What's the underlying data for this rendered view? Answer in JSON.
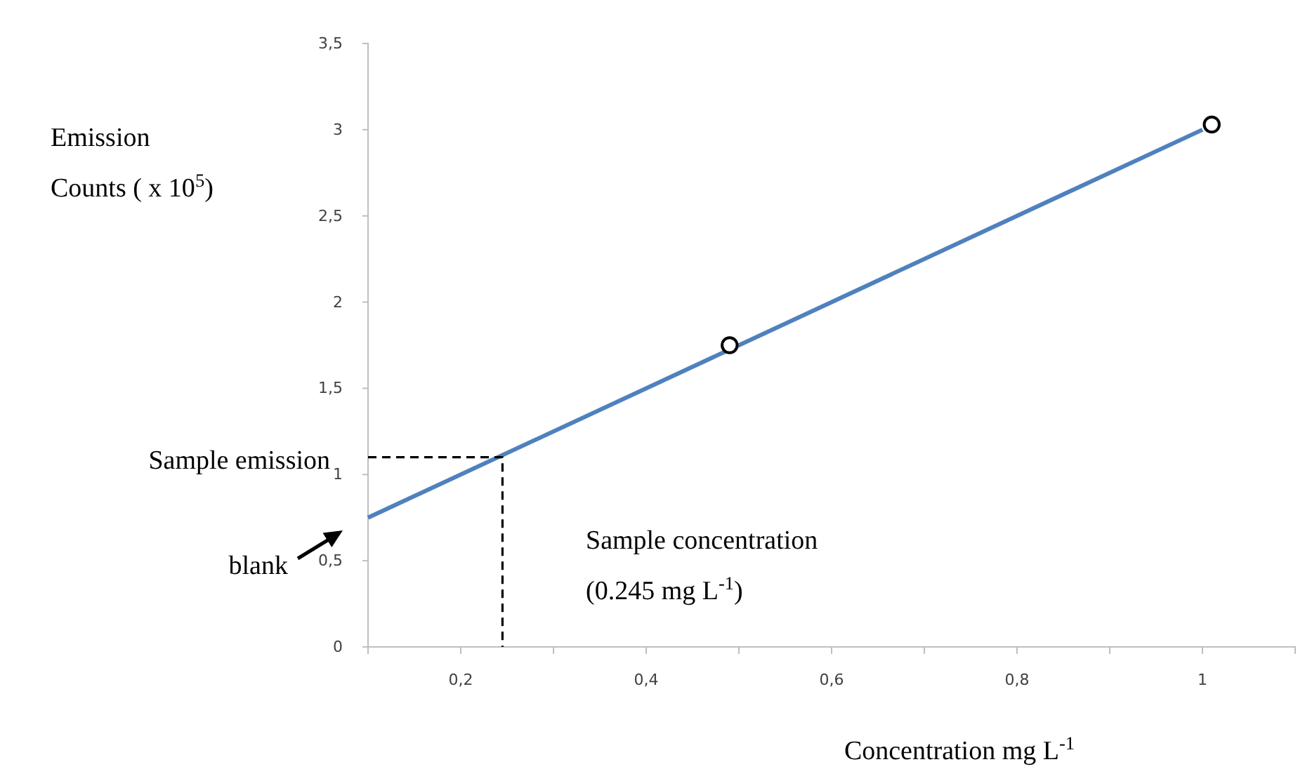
{
  "chart_data": {
    "type": "line",
    "ylabel": "Emission\nCounts  ( x 10$^{5}$)",
    "xlabel": "Concentration  mg L$^{-1}$",
    "xlim": [
      0.1,
      1.1
    ],
    "xticks": [
      {
        "value": 0.2,
        "label": "0,2"
      },
      {
        "value": 0.3,
        "label": null
      },
      {
        "value": 0.4,
        "label": "0,4"
      },
      {
        "value": 0.5,
        "label": null
      },
      {
        "value": 0.6,
        "label": "0,6"
      },
      {
        "value": 0.7,
        "label": null
      },
      {
        "value": 0.8,
        "label": "0,8"
      },
      {
        "value": 0.9,
        "label": null
      },
      {
        "value": 1,
        "label": "1"
      }
    ],
    "ylim": [
      0,
      3.5
    ],
    "yticks": [
      0,
      {
        "value": 0.5,
        "label": "0,5"
      },
      1,
      {
        "value": 1.5,
        "label": "1,5"
      },
      2,
      {
        "value": 2.5,
        "label": "2,5"
      },
      3,
      {
        "value": 3.5,
        "label": "3,5"
      }
    ],
    "grid": false,
    "series": [
      {
        "color": "#4f81bd",
        "x": [
          0.1,
          1.0
        ],
        "values": [
          0.75,
          3.0
        ],
        "marker": "none",
        "line_style": "solid"
      },
      {
        "type": "scatter",
        "color": "#000000",
        "x": [
          0.49,
          1.01
        ],
        "values": [
          1.75,
          3.03
        ],
        "marker": "circle"
      },
      {
        "color": "#000000",
        "x": [
          0.1,
          0.245,
          0.245
        ],
        "values": [
          1.1,
          1.1,
          0
        ],
        "marker": "none",
        "line_style": "dashed"
      }
    ],
    "annotations": [
      "Sample emission",
      "blank",
      "Sample concentration\n(0.245 mg L$^{-1}$)"
    ]
  }
}
